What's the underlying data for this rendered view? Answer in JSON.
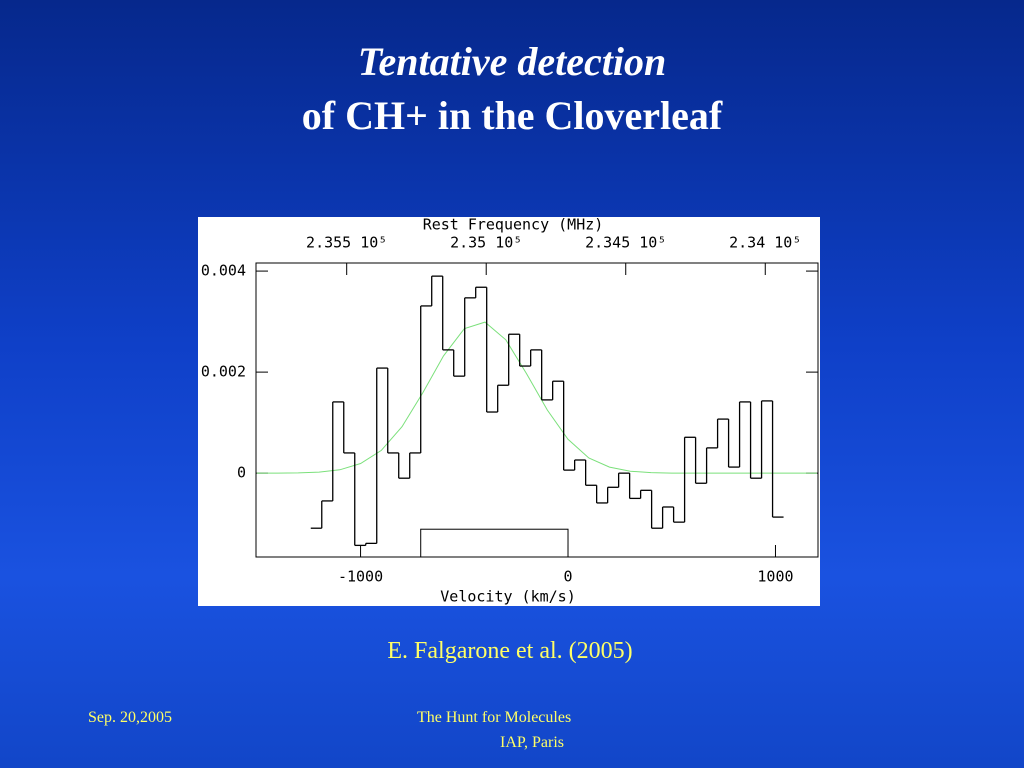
{
  "slide": {
    "title_line1": "Tentative detection",
    "title_line2": "of CH+ in the Cloverleaf",
    "citation": "E. Falgarone et al. (2005)",
    "footer_date": "Sep. 20,2005",
    "footer_event": "The Hunt for Molecules",
    "footer_place": "IAP, Paris"
  },
  "chart_data": {
    "type": "histogram",
    "title": "Rest Frequency (MHz)",
    "xlabel": "Velocity (km/s)",
    "bins": [
      -1240,
      -1187,
      -1134,
      -1081,
      -1028,
      -975,
      -922,
      -869,
      -816,
      -763,
      -710,
      -657,
      -604,
      -551,
      -498,
      -445,
      -392,
      -339,
      -286,
      -233,
      -180,
      -127,
      -74,
      -21,
      32,
      85,
      138,
      191,
      244,
      297,
      350,
      403,
      456,
      509,
      562,
      615,
      668,
      721,
      774,
      827,
      880,
      933,
      986,
      1039
    ],
    "values": [
      -0.00109,
      -0.00055,
      0.00141,
      0.0004,
      -0.00143,
      -0.00139,
      0.00208,
      0.0004,
      -0.0001,
      0.0004,
      0.00331,
      0.0039,
      0.00244,
      0.00192,
      0.00347,
      0.00368,
      0.00121,
      0.00174,
      0.00275,
      0.00212,
      0.00244,
      0.00145,
      0.00182,
      6e-05,
      0.00026,
      -0.00024,
      -0.00059,
      -0.00028,
      0,
      -0.0005,
      -0.00034,
      -0.00109,
      -0.00067,
      -0.00097,
      0.00071,
      -0.0002,
      0.0005,
      0.00107,
      0.00012,
      0.00141,
      -0.0001,
      0.00143,
      -0.00087
    ],
    "color": "#000000",
    "fit": {
      "color": "#7be07b",
      "x": [
        -1500,
        -1400,
        -1300,
        -1200,
        -1100,
        -1000,
        -900,
        -800,
        -700,
        -600,
        -500,
        -400,
        -300,
        -200,
        -100,
        0,
        100,
        200,
        300,
        400,
        500,
        600,
        700,
        800,
        900,
        1000,
        1100,
        1200
      ],
      "values": [
        0,
        0,
        5e-06,
        2e-05,
        6.7e-05,
        0.00019,
        0.00045,
        0.00092,
        0.00159,
        0.00232,
        0.00286,
        0.00299,
        0.00264,
        0.00197,
        0.00125,
        0.00067,
        0.0003,
        0.00012,
        3.8e-05,
        1e-05,
        0,
        0,
        0,
        0,
        0,
        0,
        0,
        0
      ]
    },
    "range_box": {
      "x": [
        -710,
        0
      ],
      "y_top": -0.00111
    },
    "xlim": [
      -1504,
      1205
    ],
    "ylim": [
      -0.00166,
      0.00416
    ],
    "xticks": [
      -1000,
      0,
      1000
    ],
    "yticks": [
      0,
      0.002,
      0.004
    ],
    "x2lim": [
      235825,
      233811
    ],
    "x2ticks": [
      {
        "value": 235500,
        "label": "2.355 10⁵"
      },
      {
        "value": 235000,
        "label": "2.35 10⁵"
      },
      {
        "value": 234500,
        "label": "2.345 10⁵"
      },
      {
        "value": 234000,
        "label": "2.34 10⁵"
      }
    ]
  }
}
